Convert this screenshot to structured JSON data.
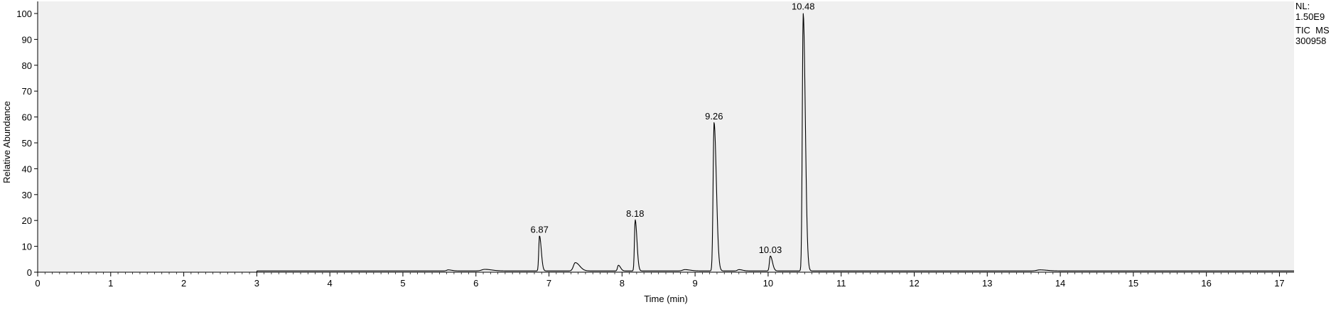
{
  "chart_data": {
    "type": "line",
    "title": "",
    "xlabel": "Time (min)",
    "ylabel": "Relative Abundance",
    "xlim": [
      0,
      17.2
    ],
    "ylim": [
      0,
      100
    ],
    "x_ticks": [
      0,
      1,
      2,
      3,
      4,
      5,
      6,
      7,
      8,
      9,
      10,
      11,
      12,
      13,
      14,
      15,
      16,
      17
    ],
    "y_ticks": [
      0,
      10,
      20,
      30,
      40,
      50,
      60,
      70,
      80,
      90,
      100
    ],
    "grid": false,
    "legend": "none",
    "plot_background": "#f0f0f0",
    "line_color": "#000000",
    "info_box": {
      "lines": [
        "NL:",
        "1.50E9",
        "TIC  MS",
        "300958"
      ]
    },
    "baseline": [
      {
        "start": 0.0,
        "end": 3.0,
        "value": 0.0
      },
      {
        "start": 3.0,
        "end": 17.2,
        "value": 0.5
      }
    ],
    "peaks": [
      {
        "rt": 5.62,
        "height": 0.4,
        "width": 0.02
      },
      {
        "rt": 6.12,
        "height": 0.6,
        "width": 0.04
      },
      {
        "rt": 6.87,
        "height": 13.6,
        "width": 0.01,
        "label": "6.87"
      },
      {
        "rt": 7.36,
        "height": 3.2,
        "width": 0.025
      },
      {
        "rt": 7.95,
        "height": 2.2,
        "width": 0.012
      },
      {
        "rt": 8.18,
        "height": 19.8,
        "width": 0.01,
        "label": "8.18"
      },
      {
        "rt": 8.86,
        "height": 0.5,
        "width": 0.03
      },
      {
        "rt": 9.26,
        "height": 57.4,
        "width": 0.013,
        "label": "9.26"
      },
      {
        "rt": 9.6,
        "height": 0.5,
        "width": 0.02
      },
      {
        "rt": 10.03,
        "height": 5.8,
        "width": 0.012,
        "label": "10.03"
      },
      {
        "rt": 10.48,
        "height": 99.8,
        "width": 0.012,
        "label": "10.48"
      },
      {
        "rt": 13.72,
        "height": 0.4,
        "width": 0.04
      }
    ]
  }
}
